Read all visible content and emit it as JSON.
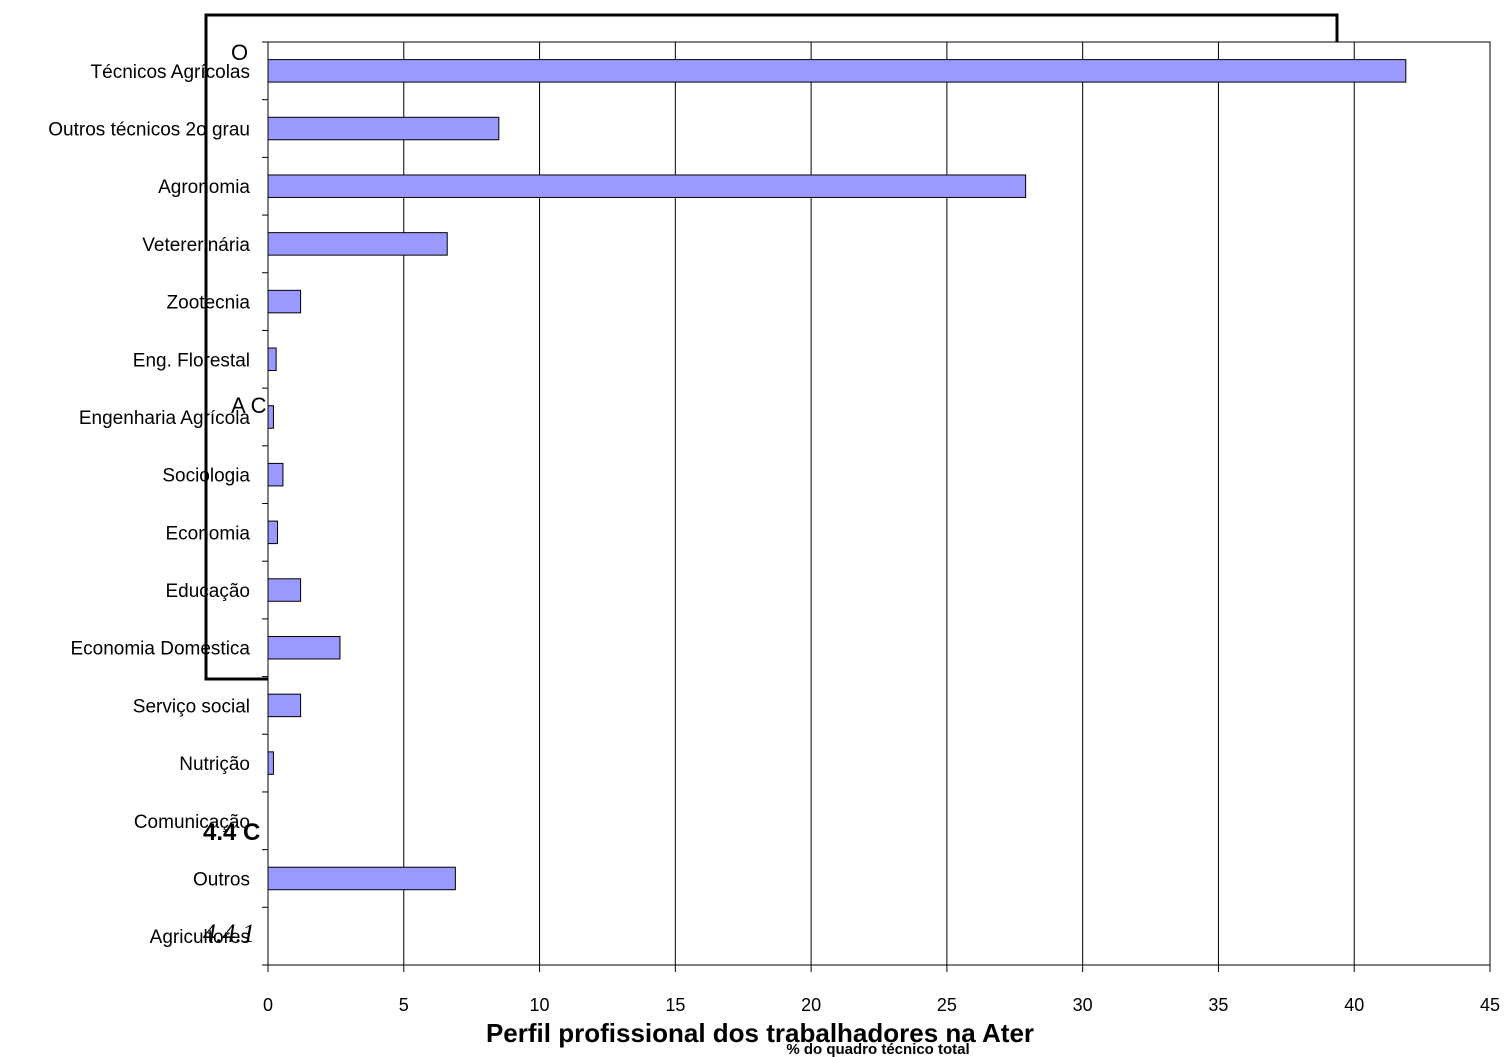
{
  "chart_data": {
    "type": "bar",
    "orientation": "horizontal",
    "title": "Perfil profissional dos trabalhadores na Ater",
    "xlabel": "% do quadro técnico total",
    "ylabel": "",
    "xlim": [
      0,
      45
    ],
    "xticks": [
      "0",
      "5",
      "10",
      "15",
      "20",
      "25",
      "30",
      "35",
      "40",
      "45"
    ],
    "grid": "vertical",
    "categories": [
      "Técnicos Agrícolas",
      "Outros técnicos 2o grau",
      "Agronomia",
      "Vetererinária",
      "Zootecnia",
      "Eng. Florestal",
      "Engenharia Agrícola",
      "Sociologia",
      "Economia",
      "Educação",
      "Economia Domestica",
      "Serviço social",
      "Nutrição",
      "Comunicação",
      "Outros",
      "Agricultores"
    ],
    "values": [
      41.9,
      8.5,
      27.9,
      6.6,
      1.2,
      0.3,
      0.2,
      0.55,
      0.35,
      1.2,
      2.65,
      1.2,
      0.2,
      0,
      6.9,
      0
    ],
    "bar_color": "#9999ff",
    "bar_stroke": "#000000"
  },
  "overlay": {
    "o_letter": "O",
    "a_text": "A  C",
    "section_heading": "4.4  C",
    "subsection_heading": "4.4.1"
  }
}
